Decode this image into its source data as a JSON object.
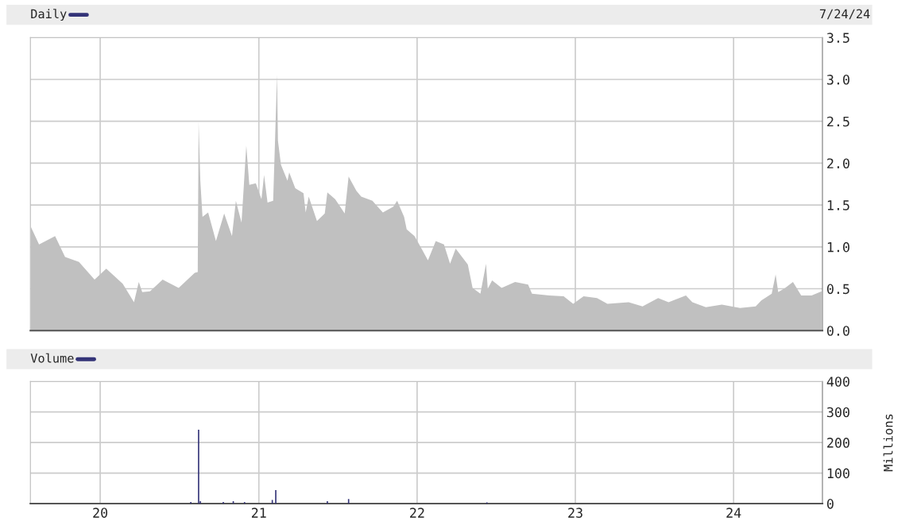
{
  "chart_data": [
    {
      "type": "area",
      "title": "Daily",
      "annotations": [
        "7/24/24"
      ],
      "x": [
        "2019-07-25",
        "2019-08-13",
        "2019-09-19",
        "2019-10-12",
        "2019-11-13",
        "2019-12-19",
        "2020-01-15",
        "2020-02-22",
        "2020-03-19",
        "2020-03-30",
        "2020-04-07",
        "2020-04-25",
        "2020-05-24",
        "2020-06-30",
        "2020-08-06",
        "2020-08-13",
        "2020-08-15",
        "2020-08-19",
        "2020-08-24",
        "2020-09-06",
        "2020-09-24",
        "2020-10-13",
        "2020-10-31",
        "2020-11-09",
        "2020-11-22",
        "2020-12-03",
        "2020-12-10",
        "2020-12-25",
        "2021-01-07",
        "2021-01-13",
        "2021-01-21",
        "2021-02-03",
        "2021-02-12",
        "2021-02-14",
        "2021-02-21",
        "2021-03-08",
        "2021-03-12",
        "2021-03-26",
        "2021-04-14",
        "2021-04-19",
        "2021-04-26",
        "2021-05-15",
        "2021-06-02",
        "2021-06-08",
        "2021-06-26",
        "2021-07-18",
        "2021-07-27",
        "2021-08-14",
        "2021-08-25",
        "2021-09-20",
        "2021-10-14",
        "2021-11-07",
        "2021-11-16",
        "2021-12-02",
        "2021-12-08",
        "2021-12-26",
        "2022-01-08",
        "2022-01-26",
        "2022-02-13",
        "2022-03-04",
        "2022-03-18",
        "2022-03-31",
        "2022-04-28",
        "2022-05-09",
        "2022-05-27",
        "2022-06-09",
        "2022-06-13",
        "2022-06-23",
        "2022-07-15",
        "2022-08-15",
        "2022-09-14",
        "2022-09-23",
        "2022-11-02",
        "2022-12-05",
        "2022-12-27",
        "2023-01-20",
        "2023-02-20",
        "2023-03-16",
        "2023-05-04",
        "2023-06-05",
        "2023-07-11",
        "2023-08-04",
        "2023-09-13",
        "2023-09-28",
        "2023-10-29",
        "2023-12-05",
        "2024-01-16",
        "2024-02-21",
        "2024-03-05",
        "2024-03-29",
        "2024-04-07",
        "2024-04-13",
        "2024-04-29",
        "2024-05-17",
        "2024-06-05",
        "2024-06-29",
        "2024-07-22"
      ],
      "series": [
        {
          "color": "#c0c0c0",
          "values": [
            1.24,
            1.03,
            1.13,
            0.88,
            0.82,
            0.61,
            0.74,
            0.56,
            0.34,
            0.58,
            0.46,
            0.47,
            0.61,
            0.51,
            0.69,
            0.7,
            2.5,
            1.79,
            1.36,
            1.41,
            1.07,
            1.4,
            1.13,
            1.55,
            1.29,
            2.21,
            1.74,
            1.76,
            1.57,
            1.86,
            1.53,
            1.55,
            3.06,
            2.27,
            1.98,
            1.79,
            1.89,
            1.7,
            1.64,
            1.41,
            1.6,
            1.31,
            1.4,
            1.65,
            1.57,
            1.4,
            1.84,
            1.67,
            1.6,
            1.55,
            1.41,
            1.48,
            1.55,
            1.36,
            1.21,
            1.13,
            1.01,
            0.84,
            1.07,
            1.03,
            0.8,
            0.98,
            0.79,
            0.51,
            0.44,
            0.8,
            0.5,
            0.6,
            0.51,
            0.58,
            0.55,
            0.44,
            0.42,
            0.41,
            0.32,
            0.41,
            0.39,
            0.32,
            0.34,
            0.29,
            0.39,
            0.34,
            0.42,
            0.34,
            0.28,
            0.31,
            0.27,
            0.29,
            0.36,
            0.44,
            0.67,
            0.46,
            0.51,
            0.58,
            0.42,
            0.42,
            0.47
          ]
        }
      ],
      "xlim": [
        "2019-07-24",
        "2024-07-24"
      ],
      "xticks": [
        {
          "value": "2020-01-01",
          "label": null
        },
        {
          "value": "2021-01-01",
          "label": null
        },
        {
          "value": "2022-01-01",
          "label": null
        },
        {
          "value": "2023-01-01",
          "label": null
        },
        {
          "value": "2024-01-01",
          "label": null
        }
      ],
      "ylim": [
        0,
        3.5
      ],
      "yticks": [
        {
          "value": 0,
          "label": "0.0"
        },
        {
          "value": 0.5,
          "label": "0.5"
        },
        {
          "value": 1,
          "label": "1.0"
        },
        {
          "value": 1.5,
          "label": "1.5"
        },
        {
          "value": 2,
          "label": "2.0"
        },
        {
          "value": 2.5,
          "label": "2.5"
        },
        {
          "value": 3,
          "label": "3.0"
        },
        {
          "value": 3.5,
          "label": "3.5"
        }
      ],
      "grid": true,
      "tick_labels": "y"
    },
    {
      "type": "bar",
      "title": "Volume",
      "ylabel": "Millions",
      "x": [
        "2020-07-28",
        "2020-08-15",
        "2020-08-19",
        "2020-10-11",
        "2020-11-03",
        "2020-11-29",
        "2021-02-01",
        "2021-02-09",
        "2021-06-08",
        "2021-07-27",
        "2022-06-11"
      ],
      "series": [
        {
          "color": "#333377",
          "values": [
            5,
            242,
            8,
            5,
            8,
            5,
            12,
            44,
            8,
            15,
            4
          ]
        }
      ],
      "xlim": [
        "2019-07-24",
        "2024-07-24"
      ],
      "xticks": [
        {
          "value": "2020-01-01",
          "label": "20"
        },
        {
          "value": "2021-01-01",
          "label": "21"
        },
        {
          "value": "2022-01-01",
          "label": "22"
        },
        {
          "value": "2023-01-01",
          "label": "23"
        },
        {
          "value": "2024-01-01",
          "label": "24"
        }
      ],
      "ylim": [
        0,
        400
      ],
      "yticks": [
        0,
        100,
        200,
        300,
        400
      ],
      "grid": true
    }
  ]
}
